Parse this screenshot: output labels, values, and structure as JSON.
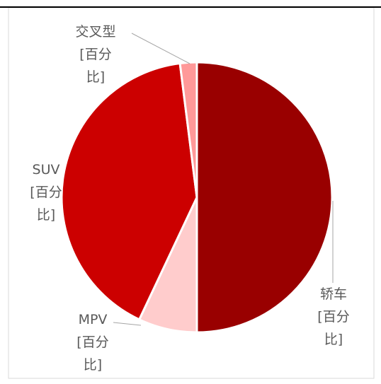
{
  "chart_data": {
    "type": "pie",
    "categories": [
      "轿车",
      "MPV",
      "SUV",
      "交叉型"
    ],
    "values": [
      50,
      7,
      41,
      2
    ],
    "value_labels": [
      "[百分比]",
      "[百分比]",
      "[百分比]",
      "[百分比]"
    ],
    "colors": [
      "#990000",
      "#ffcccc",
      "#cc0000",
      "#ff9999"
    ]
  }
}
